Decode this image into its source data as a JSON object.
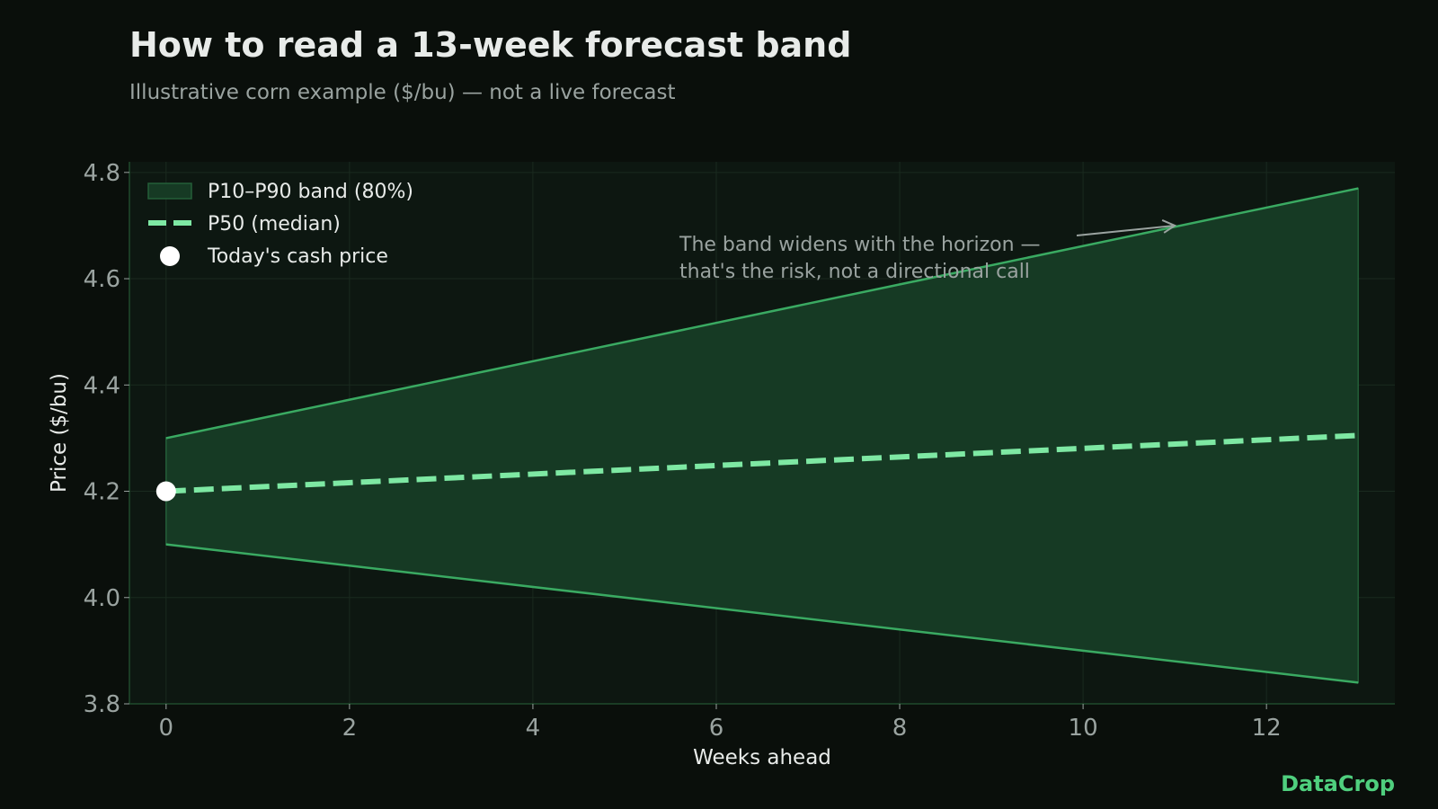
{
  "header": {
    "title": "How to read a 13-week forecast band",
    "subtitle": "Illustrative corn example ($/bu) — not a live forecast"
  },
  "brand": "DataCrop",
  "colors": {
    "background": "#0a0f0b",
    "plot_background": "#0d1711",
    "band_fill": "#163a24",
    "band_edge": "#3aaa62",
    "median": "#7ee8a3",
    "marker": "#ffffff",
    "grid": "#1a2a1f",
    "brand": "#4fcf7e"
  },
  "chart_data": {
    "type": "area",
    "xlabel": "Weeks ahead",
    "ylabel": "Price ($/bu)",
    "xlim": [
      -0.4,
      13.4
    ],
    "ylim": [
      3.8,
      4.82
    ],
    "xticks": [
      0,
      2,
      4,
      6,
      8,
      10,
      12
    ],
    "yticks": [
      3.8,
      4.0,
      4.2,
      4.4,
      4.6,
      4.8
    ],
    "grid": true,
    "legend_position": "top-left",
    "series": [
      {
        "name": "P10–P90 band (80%)",
        "kind": "band",
        "x": [
          0,
          13
        ],
        "lower": [
          4.1,
          3.84
        ],
        "upper": [
          4.3,
          4.77
        ]
      },
      {
        "name": "P50 (median)",
        "kind": "line",
        "style": "dashed",
        "x": [
          0,
          13
        ],
        "y": [
          4.2,
          4.305
        ]
      },
      {
        "name": "Today's cash price",
        "kind": "point",
        "x": [
          0
        ],
        "y": [
          4.2
        ]
      }
    ],
    "annotations": [
      {
        "text": "The band widens with the horizon —\nthat's the risk, not a directional call",
        "arrow_to": {
          "x": 11,
          "y": 4.7
        }
      }
    ]
  }
}
